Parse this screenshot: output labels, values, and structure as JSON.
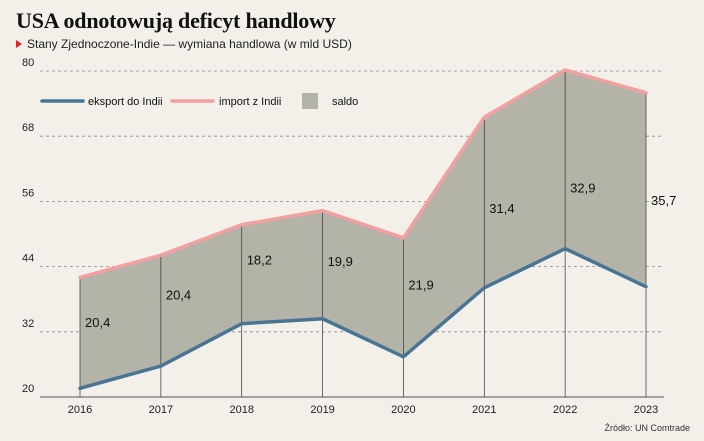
{
  "header": {
    "title": "USA odnotowują deficyt handlowy",
    "subtitle": "Stany Zjednoczone-Indie — wymiana handlowa (w mld USD)"
  },
  "source": "Źródło: UN Comtrade",
  "colors": {
    "export": "#4a7494",
    "import": "#f2a0a0",
    "saldo": "#b4b3a8",
    "accent": "#e0262b"
  },
  "chart_data": {
    "type": "area",
    "x": [
      2016,
      2017,
      2018,
      2019,
      2020,
      2021,
      2022,
      2023
    ],
    "ylim": [
      20,
      80
    ],
    "yticks": [
      20,
      32,
      44,
      56,
      68,
      80
    ],
    "grid": true,
    "legend": "top-left",
    "series": [
      {
        "name": "eksport do Indii",
        "key": "export",
        "values": [
          21.6,
          25.7,
          33.5,
          34.4,
          27.4,
          40.1,
          47.3,
          40.3
        ]
      },
      {
        "name": "import z Indii",
        "key": "import",
        "values": [
          42.0,
          46.1,
          51.7,
          54.3,
          49.3,
          71.5,
          80.2,
          76.0
        ]
      },
      {
        "name": "saldo",
        "key": "saldo"
      }
    ],
    "saldo_labels": [
      "20,4",
      "20,4",
      "18,2",
      "19,9",
      "21,9",
      "31,4",
      "32,9",
      "35,7"
    ]
  }
}
